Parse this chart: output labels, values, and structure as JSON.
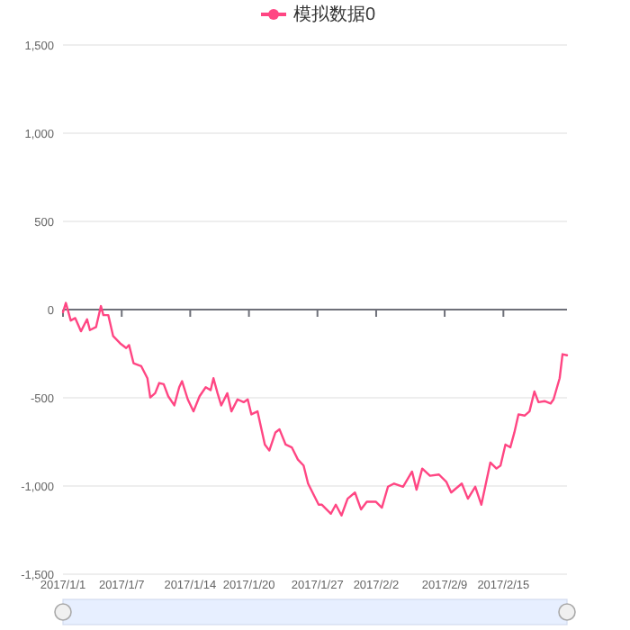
{
  "chart_data": {
    "type": "line",
    "x": [
      "2017-01-01T00:00",
      "2017-01-01T07:00",
      "2017-01-01T19:00",
      "2017-01-02T06:00",
      "2017-01-02T20:00",
      "2017-01-03T11:00",
      "2017-01-03T18:00",
      "2017-01-04T09:00",
      "2017-01-04T21:00",
      "2017-01-05T03:00",
      "2017-01-05T15:00",
      "2017-01-06T03:00",
      "2017-01-06T20:00",
      "2017-01-07T11:00",
      "2017-01-07T18:00",
      "2017-01-08T05:00",
      "2017-01-09T00:00",
      "2017-01-09T15:00",
      "2017-01-09T22:00",
      "2017-01-10T10:00",
      "2017-01-10T20:00",
      "2017-01-11T07:00",
      "2017-01-11T18:00",
      "2017-01-12T09:00",
      "2017-01-12T21:00",
      "2017-01-13T04:00",
      "2017-01-13T18:00",
      "2017-01-14T08:00",
      "2017-01-14T23:00",
      "2017-01-15T14:00",
      "2017-01-16T02:00",
      "2017-01-16T09:00",
      "2017-01-16T19:00",
      "2017-01-17T04:00",
      "2017-01-17T19:00",
      "2017-01-18T05:00",
      "2017-01-18T20:00",
      "2017-01-19T11:00",
      "2017-01-19T21:00",
      "2017-01-20T06:00",
      "2017-01-20T21:00",
      "2017-01-21T15:00",
      "2017-01-22T02:00",
      "2017-01-22T17:00",
      "2017-01-23T03:00",
      "2017-01-23T18:00",
      "2017-01-24T09:00",
      "2017-01-25T00:00",
      "2017-01-25T14:00",
      "2017-01-26T01:00",
      "2017-01-26T12:00",
      "2017-01-27T03:00",
      "2017-01-27T11:00",
      "2017-01-28T09:00",
      "2017-01-28T21:00",
      "2017-01-29T11:00",
      "2017-01-30T02:00",
      "2017-01-30T20:00",
      "2017-01-31T11:00",
      "2017-02-01T01:00",
      "2017-02-01T23:00",
      "2017-02-02T14:00",
      "2017-02-03T05:00",
      "2017-02-03T20:00",
      "2017-02-04T18:00",
      "2017-02-05T16:00",
      "2017-02-06T03:00",
      "2017-02-06T17:00",
      "2017-02-07T12:00",
      "2017-02-08T10:00",
      "2017-02-09T04:00",
      "2017-02-09T16:00",
      "2017-02-10T18:00",
      "2017-02-11T09:00",
      "2017-02-12T03:00",
      "2017-02-12T18:00",
      "2017-02-13T16:00",
      "2017-02-14T07:00",
      "2017-02-14T17:00",
      "2017-02-15T05:00",
      "2017-02-15T17:00",
      "2017-02-16T03:00",
      "2017-02-16T13:00",
      "2017-02-17T04:00",
      "2017-02-17T16:00",
      "2017-02-18T04:00",
      "2017-02-18T14:00",
      "2017-02-19T05:00",
      "2017-02-19T20:00",
      "2017-02-20T03:00",
      "2017-02-20T18:00",
      "2017-02-21T01:00",
      "2017-02-21T12:00"
    ],
    "series": [
      {
        "name": "模拟数据0",
        "color": "#ff4683",
        "values": [
          -15,
          38,
          -62,
          -48,
          -123,
          -55,
          -116,
          -99,
          20,
          -31,
          -31,
          -150,
          -191,
          -218,
          -201,
          -304,
          -321,
          -389,
          -498,
          -474,
          -416,
          -423,
          -491,
          -543,
          -440,
          -406,
          -509,
          -577,
          -491,
          -440,
          -457,
          -389,
          -474,
          -543,
          -474,
          -577,
          -509,
          -525,
          -509,
          -594,
          -577,
          -765,
          -799,
          -696,
          -679,
          -765,
          -781,
          -850,
          -884,
          -986,
          -1037,
          -1106,
          -1106,
          -1157,
          -1106,
          -1167,
          -1072,
          -1037,
          -1133,
          -1089,
          -1089,
          -1123,
          -1004,
          -986,
          -1004,
          -918,
          -1021,
          -901,
          -942,
          -935,
          -976,
          -1037,
          -986,
          -1072,
          -1004,
          -1106,
          -867,
          -901,
          -884,
          -765,
          -781,
          -696,
          -594,
          -601,
          -577,
          -464,
          -525,
          -519,
          -532,
          -509,
          -389,
          -253,
          -259
        ]
      }
    ],
    "xlim": [
      "2017-01-01T00:00",
      "2017-02-21T12:00"
    ],
    "xticks": [
      {
        "value": "2017-01-01",
        "label": "2017/1/1"
      },
      {
        "value": "2017-01-07",
        "label": "2017/1/7"
      },
      {
        "value": "2017-01-14",
        "label": "2017/1/14"
      },
      {
        "value": "2017-01-20",
        "label": "2017/1/20"
      },
      {
        "value": "2017-01-27",
        "label": "2017/1/27"
      },
      {
        "value": "2017-02-02",
        "label": "2017/2/2"
      },
      {
        "value": "2017-02-09",
        "label": "2017/2/9"
      },
      {
        "value": "2017-02-15",
        "label": "2017/2/15"
      }
    ],
    "ylim": [
      -1500,
      1500
    ],
    "yticks": [
      {
        "value": -1500,
        "label": "-1,500"
      },
      {
        "value": -1000,
        "label": "-1,000"
      },
      {
        "value": -500,
        "label": "-500"
      },
      0,
      500,
      {
        "value": 1000,
        "label": "1,000"
      },
      {
        "value": 1500,
        "label": "1,500"
      }
    ],
    "grid": "y",
    "legend": "top",
    "marker": "none",
    "line_style": "solid"
  }
}
